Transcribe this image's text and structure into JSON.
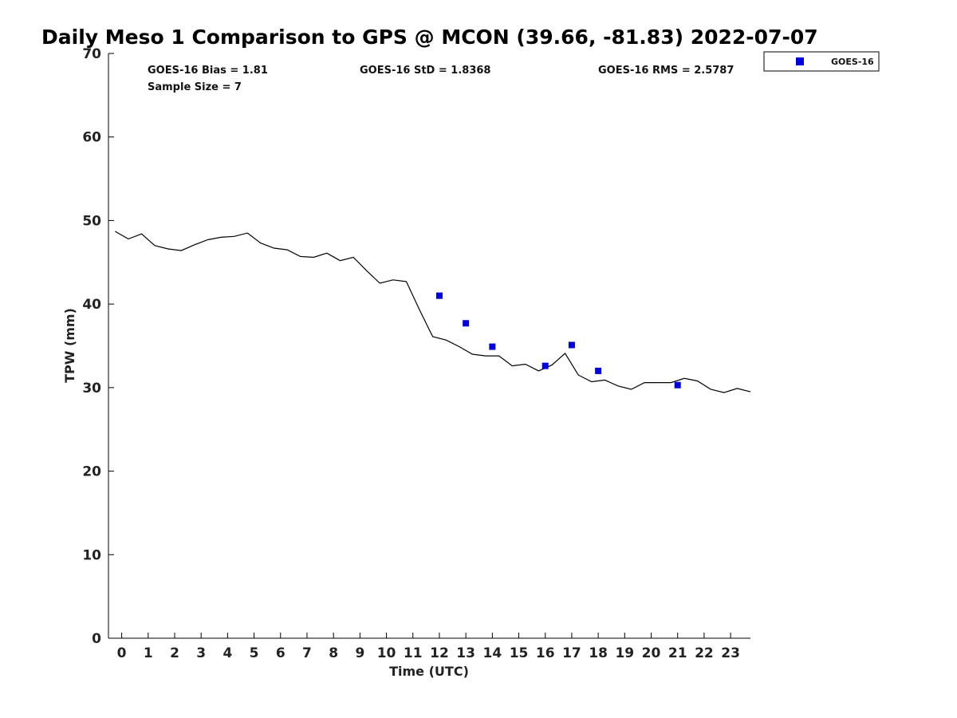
{
  "chart_data": {
    "type": "scatter",
    "title": "Daily Meso 1 Comparison to GPS @ MCON (39.66, -81.83) 2022-07-07",
    "xlabel": "Time (UTC)",
    "ylabel": "TPW (mm)",
    "xlim": [
      -0.5,
      23.75
    ],
    "ylim": [
      0,
      70
    ],
    "x_ticks": [
      "0",
      "1",
      "2",
      "3",
      "4",
      "5",
      "6",
      "7",
      "8",
      "9",
      "10",
      "11",
      "12",
      "13",
      "14",
      "15",
      "16",
      "17",
      "18",
      "19",
      "20",
      "21",
      "22",
      "23"
    ],
    "y_ticks": [
      "0",
      "10",
      "20",
      "30",
      "40",
      "50",
      "60",
      "70"
    ],
    "grid": false,
    "legend_position": "top-right",
    "stats": {
      "bias": "GOES-16 Bias = 1.81",
      "std": "GOES-16 StD = 1.8368",
      "rms": "GOES-16 RMS = 2.5787",
      "sample": "Sample Size = 7"
    },
    "series": [
      {
        "kind": "line",
        "color": "#000000",
        "x": [
          -0.25,
          0.25,
          0.75,
          1.25,
          1.75,
          2.25,
          2.75,
          3.25,
          3.75,
          4.25,
          4.75,
          5.25,
          5.75,
          6.25,
          6.75,
          7.25,
          7.75,
          8.25,
          8.75,
          9.25,
          9.75,
          10.25,
          10.75,
          11.25,
          11.75,
          12.25,
          12.75,
          13.25,
          13.75,
          14.25,
          14.75,
          15.25,
          15.75,
          16.25,
          16.75,
          17.25,
          17.75,
          18.25,
          18.75,
          19.25,
          19.75,
          20.25,
          20.75,
          21.25,
          21.75,
          22.25,
          22.75,
          23.25,
          23.75
        ],
        "values": [
          48.7,
          47.8,
          48.4,
          47.0,
          46.6,
          46.4,
          47.1,
          47.7,
          48.0,
          48.1,
          48.5,
          47.3,
          46.7,
          46.5,
          45.7,
          45.6,
          46.1,
          45.2,
          45.6,
          44.0,
          42.5,
          42.9,
          42.7,
          39.3,
          36.1,
          35.7,
          34.9,
          34.0,
          33.8,
          33.8,
          32.6,
          32.8,
          32.0,
          32.7,
          34.1,
          31.5,
          30.7,
          30.9,
          30.2,
          29.8,
          30.6,
          30.6,
          30.6,
          31.1,
          30.8,
          29.8,
          29.4,
          29.9,
          29.5
        ]
      },
      {
        "kind": "scatter",
        "name": "GOES-16",
        "color": "#0000dd",
        "x": [
          12,
          13,
          14,
          16,
          17,
          18,
          21
        ],
        "values": [
          41.0,
          37.7,
          34.9,
          32.6,
          35.1,
          32.0,
          30.3
        ]
      }
    ]
  }
}
